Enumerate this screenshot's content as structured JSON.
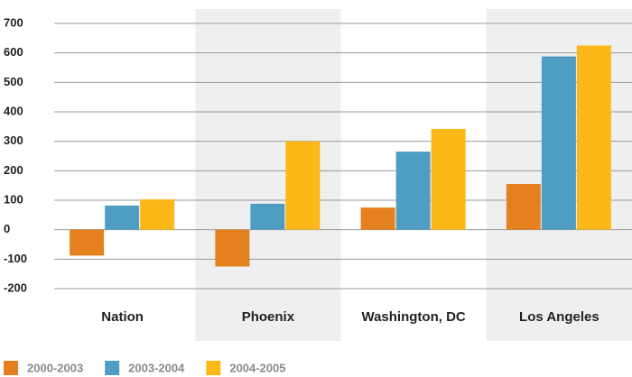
{
  "chart_data": {
    "type": "bar",
    "categories": [
      "Nation",
      "Phoenix",
      "Washington, DC",
      "Los Angeles"
    ],
    "series": [
      {
        "name": "2000-2003",
        "color": "#e5801f",
        "values": [
          -88,
          -125,
          75,
          155
        ]
      },
      {
        "name": "2003-2004",
        "color": "#4f9dc3",
        "values": [
          82,
          88,
          265,
          588
        ]
      },
      {
        "name": "2004-2005",
        "color": "#fcb719",
        "values": [
          103,
          300,
          342,
          625
        ]
      }
    ],
    "ylim": [
      -200,
      700
    ],
    "yticks": [
      -200,
      -100,
      0,
      100,
      200,
      300,
      400,
      500,
      600,
      700
    ],
    "grid": true,
    "legend": "bottom"
  }
}
